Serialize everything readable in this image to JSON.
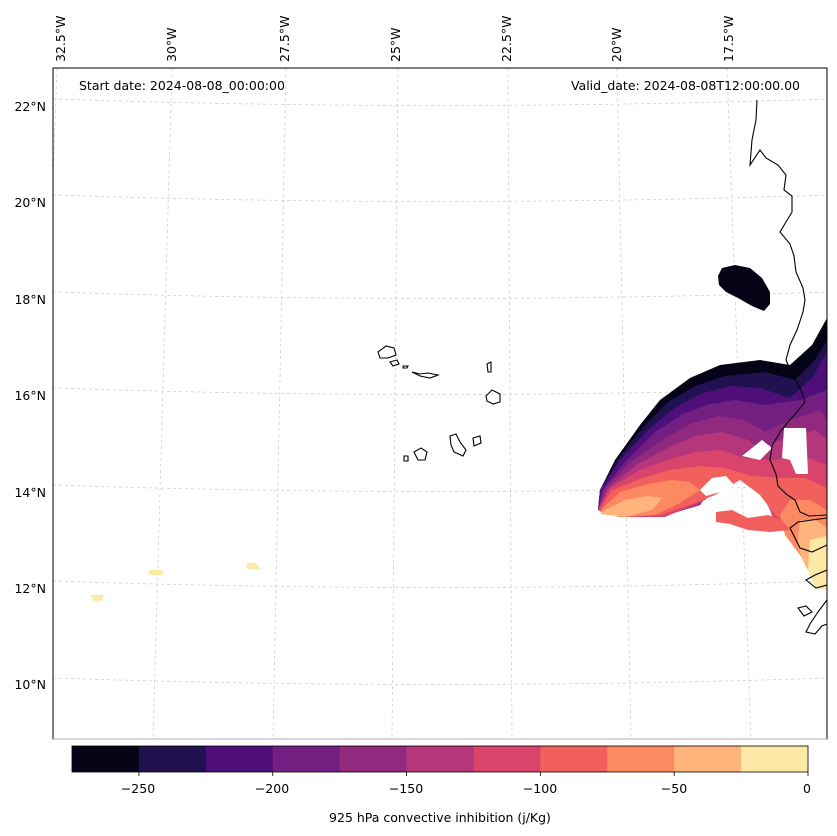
{
  "start_date": "Start date: 2024-08-08_00:00:00",
  "valid_date": "Valid_date: 2024-08-08T12:00:00.00",
  "lon_labels": [
    "32.5°W",
    "30°W",
    "27.5°W",
    "25°W",
    "22.5°W",
    "20°W",
    "17.5°W"
  ],
  "lat_labels": [
    "22°N",
    "20°N",
    "18°N",
    "16°N",
    "14°N",
    "12°N",
    "10°N"
  ],
  "colorbar": {
    "label": "925 hPa convective inhibition (j/Kg)",
    "tick_labels": [
      "−250",
      "−200",
      "−150",
      "−100",
      "−50",
      "0"
    ],
    "levels": [
      -275,
      -250,
      -225,
      -200,
      -175,
      -150,
      -125,
      -100,
      -75,
      -50,
      -25,
      0
    ],
    "colors": [
      "#050416",
      "#221150",
      "#4e0f7b",
      "#721f81",
      "#912a7f",
      "#b5367a",
      "#d8446b",
      "#f1605d",
      "#fc8961",
      "#feb47b",
      "#fde8a5"
    ]
  }
}
